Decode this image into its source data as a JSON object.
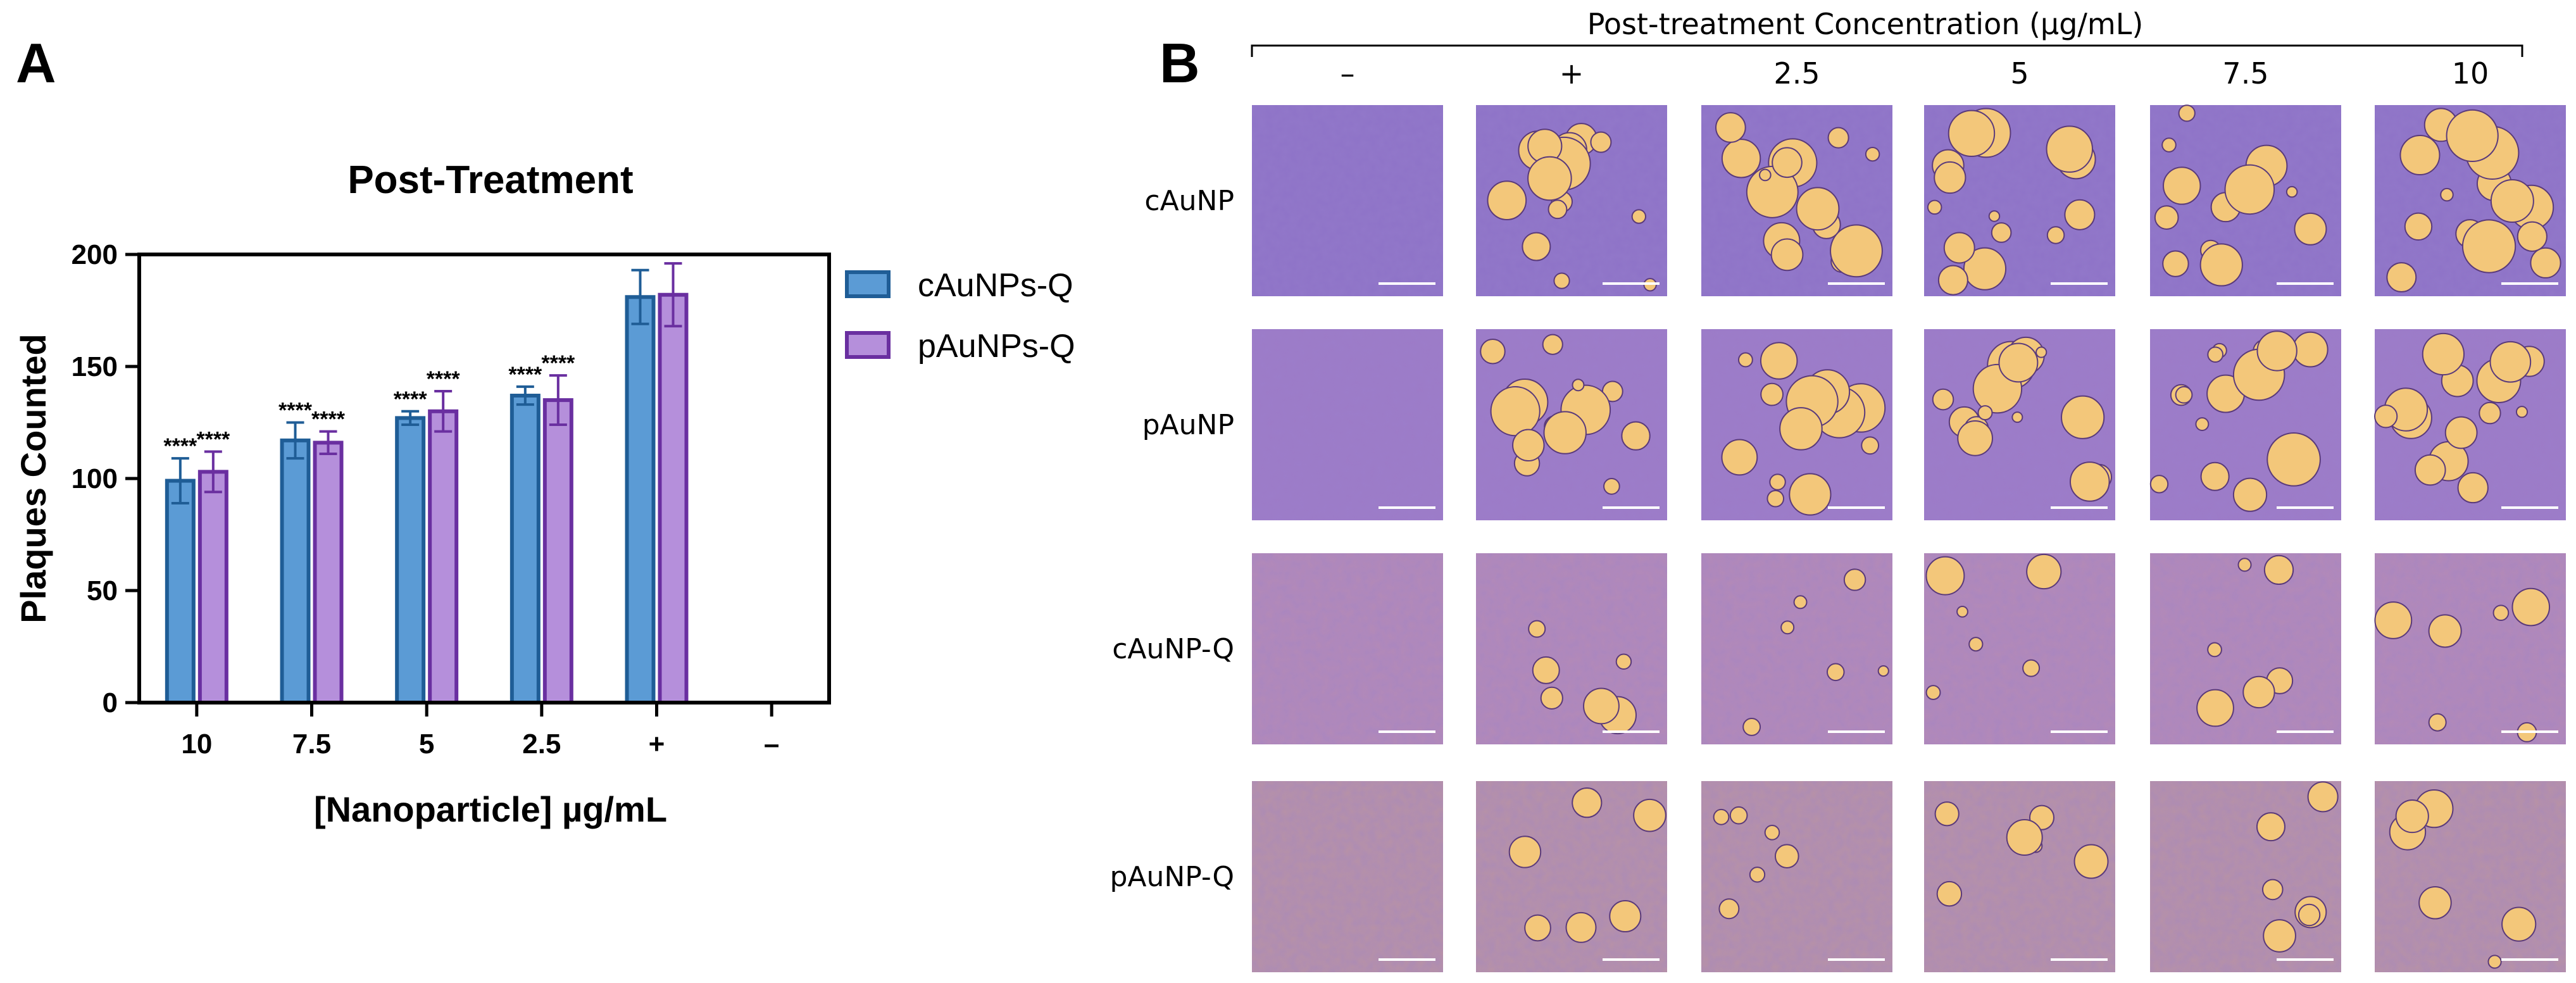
{
  "panels": {
    "a": "A",
    "b": "B"
  },
  "colors": {
    "cAuNPs_fill": "#5b9bd5",
    "cAuNPs_stroke": "#1f5d96",
    "pAuNPs_fill": "#b58fdb",
    "pAuNPs_stroke": "#6a2fa0",
    "plaque_bg": "#8a6cc0",
    "plaque_spot": "#f3c77a"
  },
  "chart_data": {
    "type": "bar",
    "title": "Post-Treatment",
    "xlabel": "[Nanoparticle] µg/mL",
    "ylabel": "Plaques Counted",
    "categories": [
      "10",
      "7.5",
      "5",
      "2.5",
      "+",
      "–"
    ],
    "ylim": [
      0,
      200
    ],
    "yticks": [
      0,
      50,
      100,
      150,
      200
    ],
    "legend_position": "right",
    "series": [
      {
        "name": "cAuNPs-Q",
        "values": [
          99,
          117,
          127,
          137,
          181,
          null
        ],
        "errors": [
          10,
          8,
          3,
          4,
          12,
          null
        ],
        "significance": [
          "****",
          "****",
          "****",
          "****",
          "",
          ""
        ]
      },
      {
        "name": "pAuNPs-Q",
        "values": [
          103,
          116,
          130,
          135,
          182,
          null
        ],
        "errors": [
          9,
          5,
          9,
          11,
          14,
          null
        ],
        "significance": [
          "****",
          "****",
          "****",
          "****",
          "",
          ""
        ]
      }
    ]
  },
  "image_grid": {
    "header": "Post-treatment Concentration (µg/mL)",
    "columns": [
      "–",
      "+",
      "2.5",
      "5",
      "7.5",
      "10"
    ],
    "rows": [
      "cAuNP",
      "pAuNP",
      "cAuNP-Q",
      "pAuNP-Q"
    ],
    "scale_bar": "1000µm"
  }
}
